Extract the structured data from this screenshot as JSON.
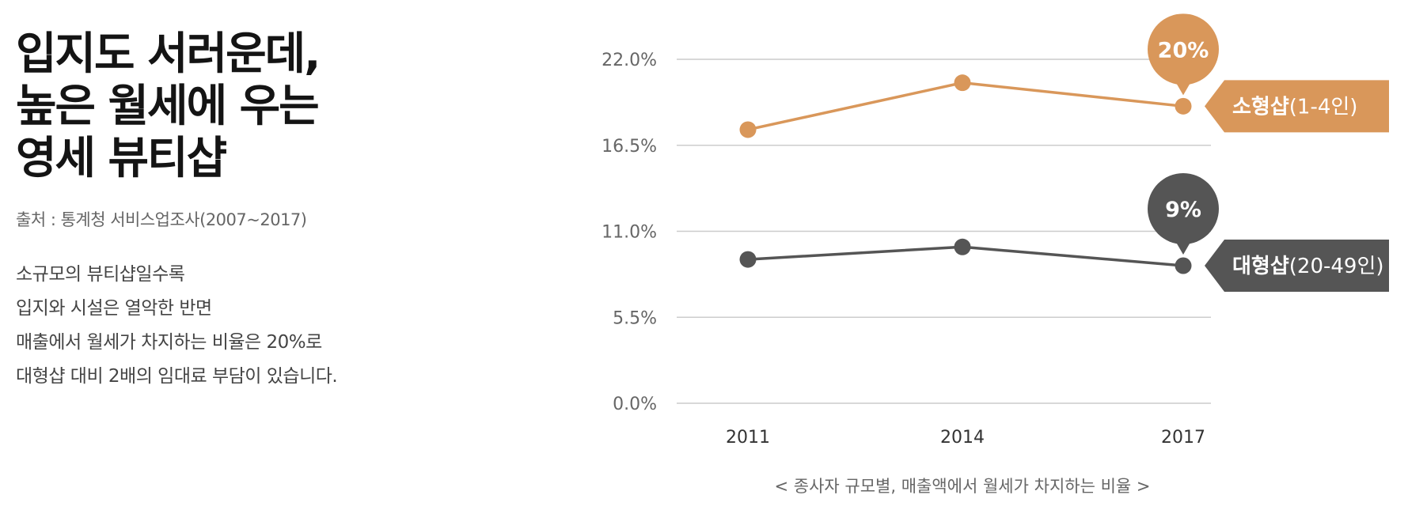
{
  "headline": {
    "lines": [
      "입지도 서러운데,",
      "높은 월세에 우는",
      "영세 뷰티샵"
    ]
  },
  "source": "출처 : 통계청 서비스업조사(2007~2017)",
  "description": {
    "lines": [
      "소규모의 뷰티샵일수록",
      "입지와 시설은 열악한 반면",
      "매출에서 월세가 차지하는 비율은 20%로",
      "대형샵 대비 2배의 임대료 부담이 있습니다."
    ]
  },
  "colors": {
    "small": "#d9975a",
    "large": "#555555",
    "grid": "#cccccc"
  },
  "chart_data": {
    "type": "line",
    "title": "",
    "caption": "< 종사자 규모별, 매출액에서 월세가 차지하는 비율 >",
    "xlabel": "",
    "ylabel": "",
    "categories": [
      "2011",
      "2014",
      "2017"
    ],
    "ylim": [
      0,
      22
    ],
    "yticks": [
      0,
      5.5,
      11,
      16.5,
      22
    ],
    "ytick_labels": [
      "0.0%",
      "5.5%",
      "11.0%",
      "16.5%",
      "22.0%"
    ],
    "grid": true,
    "series": [
      {
        "key": "small",
        "label_bold": "소형샵",
        "label_rest": "(1-4인)",
        "values": [
          17.5,
          20.5,
          19.0
        ],
        "callout": "20%"
      },
      {
        "key": "large",
        "label_bold": "대형샵",
        "label_rest": "(20-49인)",
        "values": [
          9.2,
          10.0,
          8.8
        ],
        "callout": "9%"
      }
    ]
  }
}
